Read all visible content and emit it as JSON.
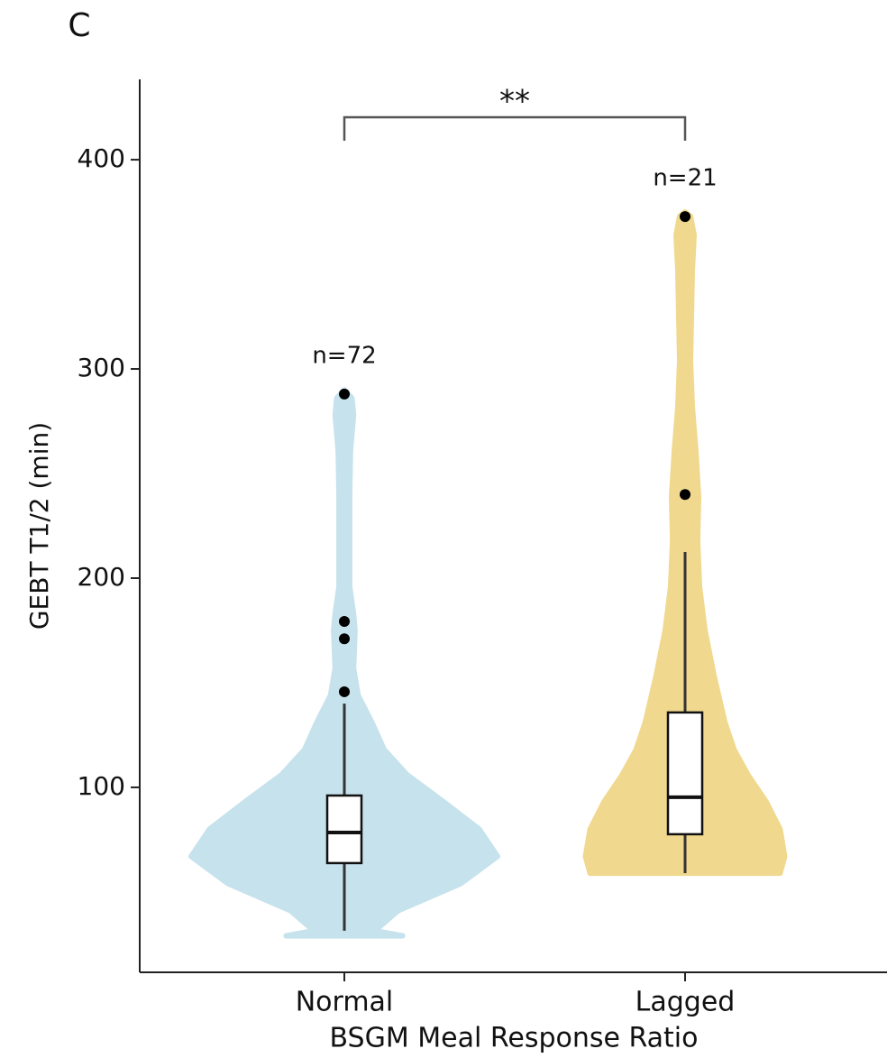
{
  "chart_data": {
    "type": "violin",
    "panel_label": "C",
    "xlabel": "BSGM Meal Response Ratio",
    "ylabel": "GEBT T1/2 (min)",
    "categories": [
      "Normal",
      "Lagged"
    ],
    "ylim": [
      11.6,
      438.4
    ],
    "yticks": [
      100,
      200,
      300,
      400
    ],
    "significance": "**",
    "groups": [
      {
        "color": "#c6e2ec",
        "n_label": "n=72",
        "q1": 63.8,
        "median": 78.4,
        "q3": 96.1,
        "whisker_low": 31.5,
        "whisker_high": 140,
        "outliers": [
          145.7,
          171,
          179.3,
          288
        ],
        "violin": {
          "y": [
            29,
            31.5,
            41,
            54,
            67,
            80,
            93,
            106,
            118,
            131,
            144,
            157,
            175,
            183,
            196,
            218,
            239,
            261,
            278,
            286,
            290
          ],
          "width": [
            0.38,
            0.2,
            0.35,
            0.76,
            1.0,
            0.88,
            0.65,
            0.41,
            0.26,
            0.18,
            0.09,
            0.06,
            0.07,
            0.06,
            0.035,
            0.035,
            0.035,
            0.04,
            0.06,
            0.05,
            0.0
          ]
        }
      },
      {
        "color": "#f0d88e",
        "n_label": "n=21",
        "q1": 77.6,
        "median": 95.3,
        "q3": 135.8,
        "whisker_low": 59,
        "whisker_high": 212.5,
        "outliers": [
          240,
          372.8
        ],
        "violin": {
          "y": [
            59,
            67,
            80,
            93,
            106,
            118,
            131,
            153,
            175,
            196,
            218,
            239,
            261,
            282,
            304,
            325,
            347,
            364,
            373,
            375
          ],
          "width": [
            0.62,
            0.65,
            0.62,
            0.53,
            0.41,
            0.32,
            0.26,
            0.19,
            0.13,
            0.094,
            0.082,
            0.088,
            0.07,
            0.047,
            0.035,
            0.041,
            0.047,
            0.059,
            0.035,
            0.0
          ]
        }
      }
    ]
  }
}
